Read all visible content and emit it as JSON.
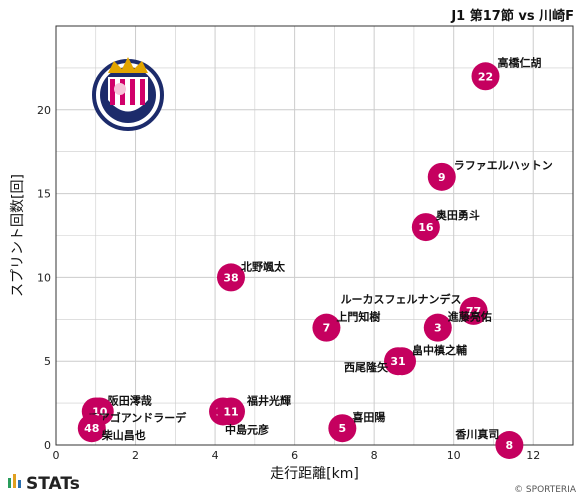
{
  "header": {
    "title": "J1 第17節 vs 川崎F"
  },
  "footer": {
    "brand": "STATs",
    "credit": "© SPORTERIA"
  },
  "logo": {
    "icon": "cerezo-osaka-crest-icon",
    "ring_text": "CEREZO OSAKA"
  },
  "colors": {
    "point": "#c5005f",
    "grid": "#cccccc",
    "frame": "#333333"
  },
  "chart_data": {
    "type": "scatter",
    "title": "J1 第17節 vs 川崎F",
    "xlabel": "走行距離[km]",
    "ylabel": "スプリント回数[回]",
    "xlim": [
      0,
      13
    ],
    "ylim": [
      0,
      25
    ],
    "xticks": [
      0,
      2,
      4,
      6,
      8,
      10,
      12
    ],
    "yticks": [
      0,
      5,
      10,
      15,
      20
    ],
    "grid": true,
    "points": [
      {
        "number": "22",
        "name": "高橋仁胡",
        "x": 10.8,
        "y": 22
      },
      {
        "number": "9",
        "name": "ラファエルハットン",
        "x": 9.7,
        "y": 16
      },
      {
        "number": "16",
        "name": "奥田勇斗",
        "x": 9.3,
        "y": 13
      },
      {
        "number": "38",
        "name": "北野颯太",
        "x": 4.4,
        "y": 10
      },
      {
        "number": "77",
        "name": "ルーカスフェルナンデス",
        "x": 10.5,
        "y": 8
      },
      {
        "number": "7",
        "name": "上門知樹",
        "x": 6.8,
        "y": 7
      },
      {
        "number": "3",
        "name": "進藤亮佑",
        "x": 9.6,
        "y": 7
      },
      {
        "number": "33",
        "name": "畠中槙之輔",
        "x": 8.7,
        "y": 5
      },
      {
        "number": "31",
        "name": "西尾隆矢",
        "x": 8.6,
        "y": 5
      },
      {
        "number": "13",
        "name": "福井光輝",
        "x": 4.2,
        "y": 2
      },
      {
        "number": "11",
        "name": "中島元彦",
        "x": 4.4,
        "y": 2
      },
      {
        "number": "17",
        "name": "阪田澪哉",
        "x": 1.0,
        "y": 2
      },
      {
        "number": "10",
        "name": "チアゴアンドラーデ",
        "x": 1.1,
        "y": 2
      },
      {
        "number": "48",
        "name": "柴山昌也",
        "x": 0.9,
        "y": 1
      },
      {
        "number": "5",
        "name": "喜田陽",
        "x": 7.2,
        "y": 1
      },
      {
        "number": "8",
        "name": "香川真司",
        "x": 11.4,
        "y": 0
      }
    ]
  }
}
